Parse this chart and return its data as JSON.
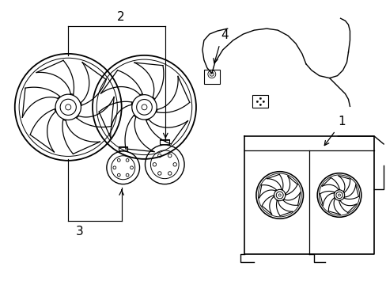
{
  "background_color": "#ffffff",
  "line_color": "#000000",
  "line_width": 1.0,
  "fig_width": 4.89,
  "fig_height": 3.6,
  "dpi": 100,
  "label_fontsize": 11
}
